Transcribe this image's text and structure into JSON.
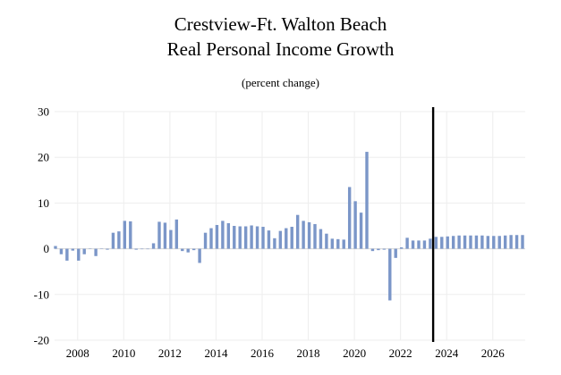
{
  "chart_data": {
    "type": "bar",
    "title": "Crestview-Ft. Walton Beach",
    "title_line2": "Real Personal Income Growth",
    "subtitle": "(percent change)",
    "xlabel": "",
    "ylabel": "",
    "ylim": [
      -20,
      30
    ],
    "yticks": [
      "30",
      "20",
      "10",
      "0",
      "-10",
      "-20"
    ],
    "ytick_values": [
      30,
      20,
      10,
      0,
      -10,
      -20
    ],
    "xticks": [
      "2008",
      "2010",
      "2012",
      "2014",
      "2016",
      "2018",
      "2020",
      "2022",
      "2024",
      "2026"
    ],
    "xtick_quarter_index": [
      4,
      12,
      20,
      28,
      36,
      44,
      52,
      60,
      68,
      76
    ],
    "forecast_start_index": 66,
    "bar_color": "#7b96c8",
    "divider_color": "#000000",
    "start_quarter": "2007Q1",
    "values": [
      0.6,
      -1.2,
      -2.6,
      -0.4,
      -2.6,
      -1.2,
      0.0,
      -1.6,
      0.0,
      -0.2,
      3.5,
      3.8,
      6.1,
      6.0,
      -0.2,
      -0.1,
      -0.1,
      1.2,
      5.9,
      5.7,
      4.1,
      6.4,
      -0.5,
      -0.8,
      -0.3,
      -3.1,
      3.5,
      4.5,
      5.2,
      6.1,
      5.6,
      5.0,
      4.9,
      4.9,
      5.1,
      4.9,
      4.8,
      4.0,
      2.3,
      3.9,
      4.5,
      4.8,
      7.4,
      6.1,
      5.8,
      5.4,
      4.3,
      3.3,
      2.2,
      2.1,
      2.0,
      13.5,
      10.4,
      7.9,
      21.2,
      -0.5,
      -0.3,
      -0.2,
      -11.3,
      -2.0,
      0.3,
      2.4,
      1.8,
      1.8,
      1.8,
      2.2,
      2.6,
      2.6,
      2.7,
      2.8,
      2.9,
      2.9,
      2.9,
      2.9,
      2.9,
      2.8,
      2.8,
      2.8,
      2.9,
      3.0,
      3.0,
      3.0
    ]
  }
}
